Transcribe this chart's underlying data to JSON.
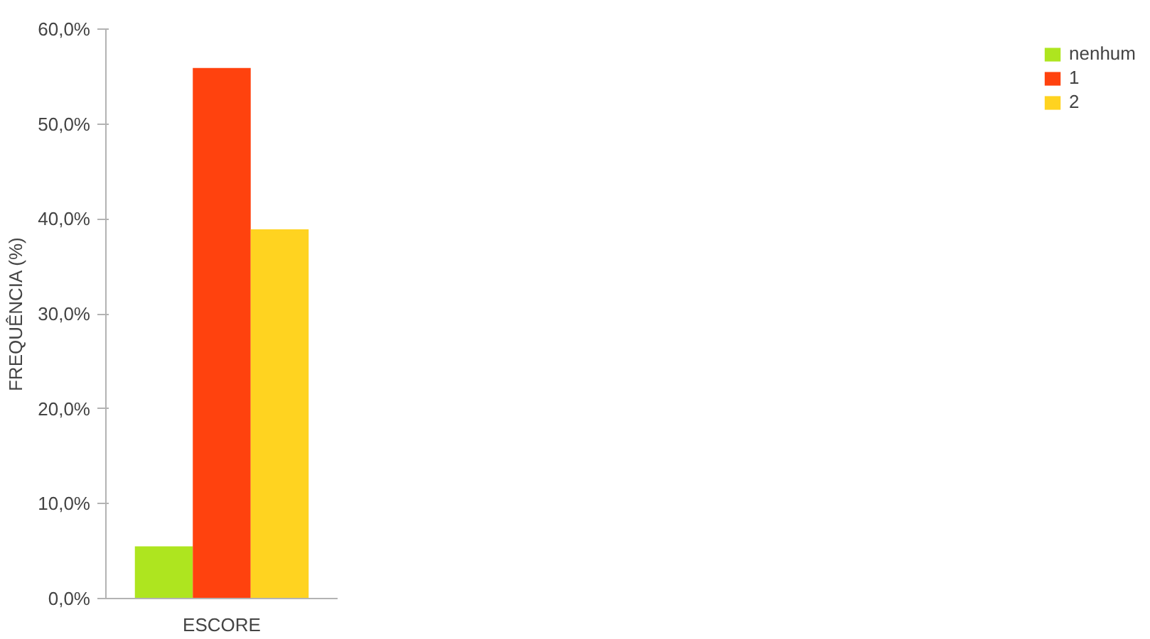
{
  "chart_data": {
    "type": "bar",
    "xlabel": "ESCORE",
    "ylabel": "FREQUÊNCIA (%)",
    "categories": [
      null
    ],
    "series": [
      {
        "name": "nenhum",
        "color": "#aee51f",
        "values": [
          5.5
        ]
      },
      {
        "name": "1",
        "color": "#ff420e",
        "values": [
          55.9
        ]
      },
      {
        "name": "2",
        "color": "#ffd320",
        "values": [
          38.9
        ]
      }
    ],
    "ylim": [
      0,
      60
    ],
    "yticks": [
      {
        "value": 0,
        "label": "0,0%"
      },
      {
        "value": 10,
        "label": "10,0%"
      },
      {
        "value": 20,
        "label": "20,0%"
      },
      {
        "value": 30,
        "label": "30,0%"
      },
      {
        "value": 40,
        "label": "40,0%"
      },
      {
        "value": 50,
        "label": "50,0%"
      },
      {
        "value": 60,
        "label": "60,0%"
      }
    ],
    "tick_labels": "y",
    "grid": false,
    "legend": "right"
  }
}
